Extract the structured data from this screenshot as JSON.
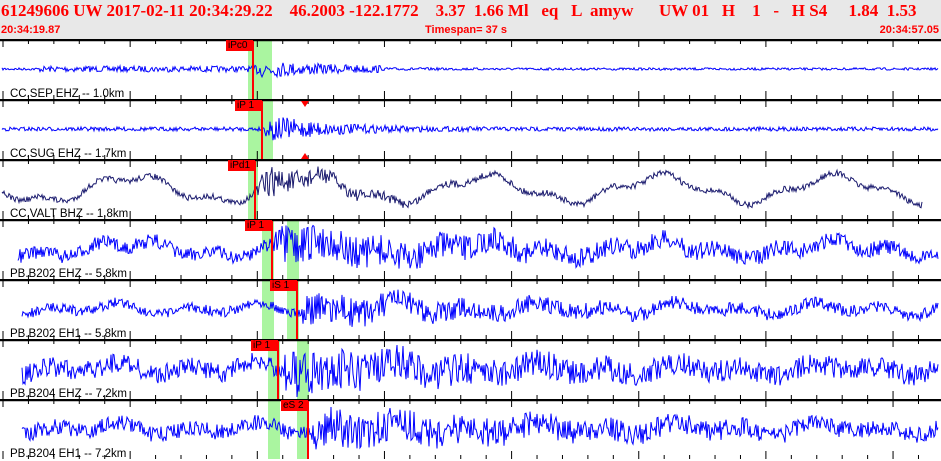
{
  "header": {
    "title": "61249606 UW 2017-02-11 20:34:29.22    46.2003 -122.1772    3.37  1.66 Ml   eq   L  amyw      UW 01   H    1   -   H S4     1.84  1.53",
    "start_time": "20:34:19.87",
    "timespan": "Timespan=  37 s",
    "end_time": "20:34:57.05"
  },
  "colors": {
    "header_text": "#ff0000",
    "trace_blue": "#0000ff",
    "trace_dark": "#1a1a6e",
    "pick": "#ff0000",
    "window": "#aaf5a0",
    "header_bg": "#e8e8e8"
  },
  "channels": [
    {
      "label": "CC.SEP EHZ -- 1.0km",
      "pick": "iPc0",
      "color": "#0000ff"
    },
    {
      "label": "CC.SUG EHZ -- 1.7km",
      "pick": "iP 1",
      "color": "#0000ff"
    },
    {
      "label": "CC.VALT BHZ -- 1.8km",
      "pick": "iPd1",
      "color": "#1a1a6e"
    },
    {
      "label": "PB.B202 EHZ -- 5.8km",
      "pick": "iP 1",
      "color": "#0000ff"
    },
    {
      "label": "PB.B202 EH1 -- 5.8km",
      "pick": "iS 1",
      "color": "#0000ff"
    },
    {
      "label": "PB.B204 EHZ -- 7.2km",
      "pick": "iP 1",
      "color": "#0000ff"
    },
    {
      "label": "PB.B204 EH1 -- 7.2km",
      "pick": "eS 2",
      "color": "#0000ff"
    }
  ]
}
